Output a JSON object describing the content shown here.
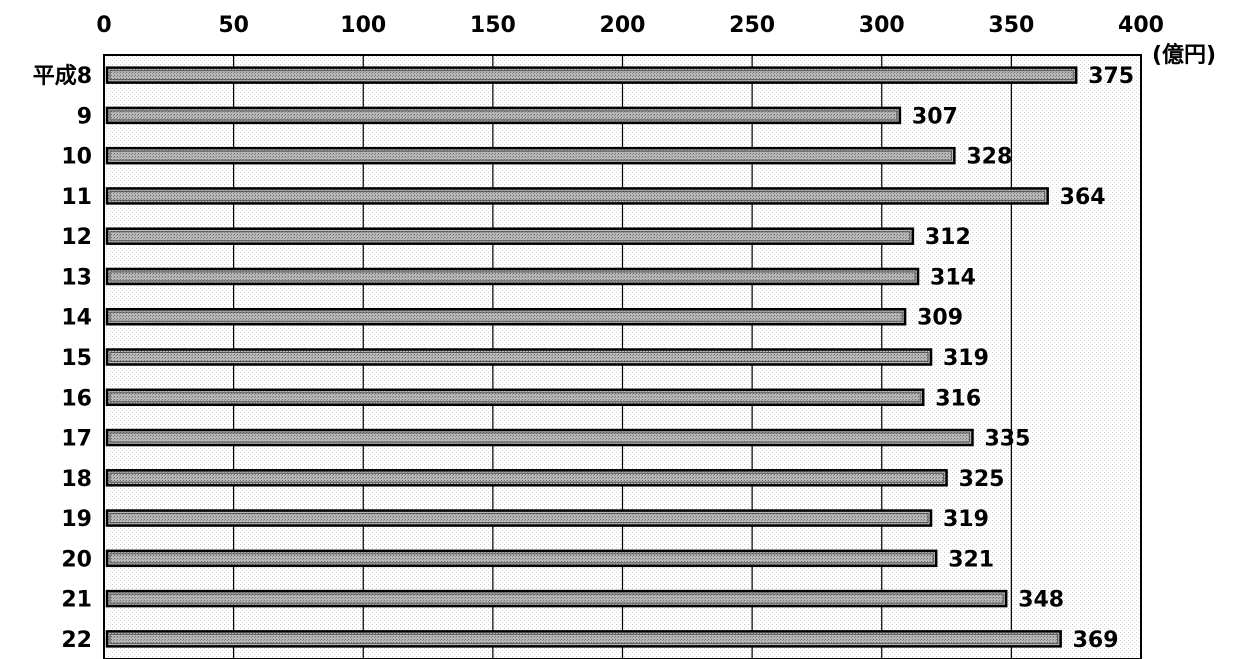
{
  "chart_data": {
    "type": "bar",
    "orientation": "horizontal",
    "categories": [
      "平成8",
      "9",
      "10",
      "11",
      "12",
      "13",
      "14",
      "15",
      "16",
      "17",
      "18",
      "19",
      "20",
      "21",
      "22"
    ],
    "values": [
      375,
      307,
      328,
      364,
      312,
      314,
      309,
      319,
      316,
      335,
      325,
      319,
      321,
      348,
      369
    ],
    "x_ticks": [
      "0",
      "50",
      "100",
      "150",
      "200",
      "250",
      "300",
      "350",
      "400"
    ],
    "xlim": [
      0,
      400
    ],
    "unit": "(億円)",
    "grid": true,
    "bar_color": "#9a9a9a",
    "frame_color": "#000000"
  }
}
